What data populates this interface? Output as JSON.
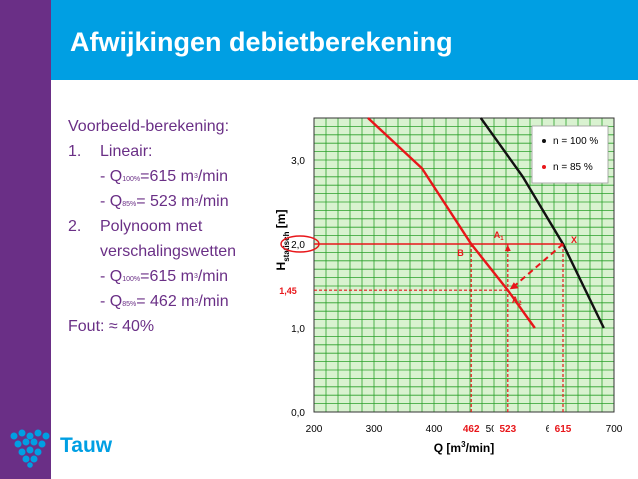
{
  "slide": {
    "title": "Afwijkingen debietberekening",
    "logo_text": "Tauw",
    "colors": {
      "purple": "#6a2f86",
      "blue": "#009fe3",
      "grid": "#2aa02a",
      "plot_bg": "#d9f2d0",
      "red": "#e8161a",
      "black": "#111111"
    }
  },
  "text": {
    "heading": "Voorbeeld-berekening:",
    "item1_num": "1.",
    "item1_label": "Lineair:",
    "item1_a_pre": "- Q",
    "item1_a_sub": "100%",
    "item1_a_val": "=615 m",
    "item1_a_sup": "3",
    "item1_a_unit": "/min",
    "item1_b_pre": "- Q",
    "item1_b_sub": "85%",
    "item1_b_val": "= 523 m",
    "item1_b_sup": "3",
    "item1_b_unit": "/min",
    "item2_num": "2.",
    "item2_label1": "Polynoom met",
    "item2_label2": "verschalingswetten",
    "item2_a_pre": "- Q",
    "item2_a_sub": "100%",
    "item2_a_val": "=615 m",
    "item2_a_sup": "3",
    "item2_a_unit": "/min",
    "item2_b_pre": "- Q",
    "item2_b_sub": "85%",
    "item2_b_val": "= 462 m",
    "item2_b_sup": "3",
    "item2_b_unit": "/min",
    "fout": "Fout: ≈ 40%"
  },
  "chart_data": {
    "type": "line",
    "xlabel": "Q [m³/min]",
    "ylabel_main": "H",
    "ylabel_sub": "statisch",
    "ylabel_unit": " [m]",
    "xlim": [
      200,
      700
    ],
    "ylim": [
      0,
      3.5
    ],
    "xticks": [
      "200",
      "300",
      "400",
      "500",
      "600",
      "700"
    ],
    "yticks": [
      "0,0",
      "1,0",
      "2,0",
      "3,0"
    ],
    "grid": true,
    "legend_position": "top-right",
    "series": [
      {
        "name": "n = 100 %",
        "color": "#111111",
        "x": [
          478,
          548,
          615,
          683
        ],
        "y": [
          3.5,
          2.8,
          2.0,
          1.0
        ]
      },
      {
        "name": "n = 85 %",
        "color": "#e8161a",
        "x": [
          290,
          380,
          462,
          523,
          568
        ],
        "y": [
          3.5,
          2.9,
          2.0,
          1.45,
          1.0
        ]
      }
    ],
    "annotations": {
      "y_highlight": "1,45",
      "x_highlight": [
        "462",
        "523",
        "615"
      ],
      "points": [
        {
          "label": "X",
          "x": 615,
          "y": 2.0
        },
        {
          "label": "A",
          "sub": "1",
          "x": 523,
          "y": 2.0
        },
        {
          "label": "A",
          "sub": "2",
          "x": 523,
          "y": 1.45
        },
        {
          "label": "B",
          "x": 462,
          "y": 2.0
        }
      ]
    }
  }
}
